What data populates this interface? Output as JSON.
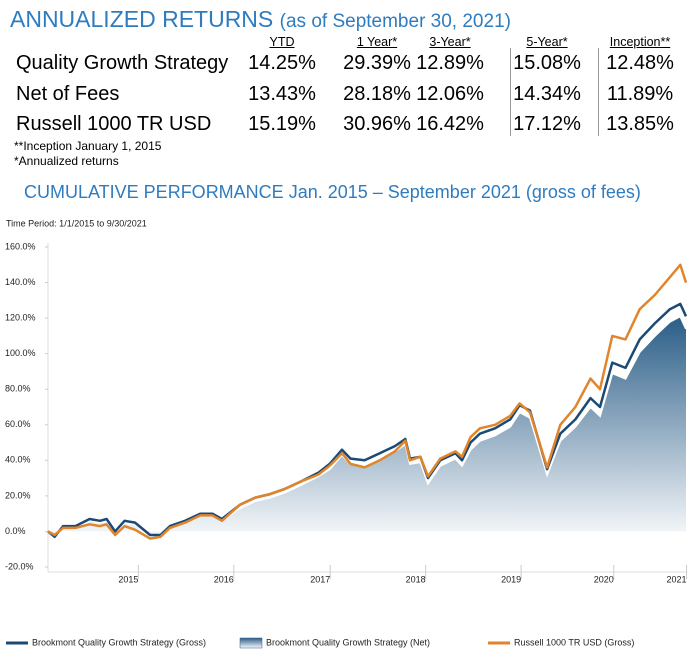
{
  "table": {
    "title": "ANNUALIZED RETURNS",
    "subtitle": "(as of September 30, 2021)",
    "columns": [
      "YTD",
      "1 Year*",
      "3-Year*",
      "5-Year*",
      "Inception**"
    ],
    "rows": [
      [
        "Quality Growth Strategy",
        "14.25%",
        "29.39%",
        "12.89%",
        "15.08%",
        "12.48%"
      ],
      [
        "Net of Fees",
        "13.43%",
        "28.18%",
        "12.06%",
        "14.34%",
        "11.89%"
      ],
      [
        "Russell 1000 TR USD",
        "15.19%",
        "30.96%",
        "16.42%",
        "17.12%",
        "13.85%"
      ]
    ],
    "notes": [
      "**Inception January 1, 2015",
      "*Annualized returns"
    ]
  },
  "chart_data": {
    "type": "line",
    "title": "CUMULATIVE PERFORMANCE Jan. 2015 – September 2021 (gross of fees)",
    "subtitle": "Time Period: 1/1/2015 to 9/30/2021",
    "x": [
      2015.0,
      2015.07,
      2015.16,
      2015.29,
      2015.44,
      2015.55,
      2015.62,
      2015.71,
      2015.81,
      2015.92,
      2016.08,
      2016.19,
      2016.29,
      2016.45,
      2016.61,
      2016.74,
      2016.84,
      2017.03,
      2017.19,
      2017.35,
      2017.51,
      2017.67,
      2017.86,
      2017.98,
      2018.11,
      2018.2,
      2018.35,
      2018.51,
      2018.67,
      2018.78,
      2018.83,
      2018.94,
      2019.02,
      2019.15,
      2019.31,
      2019.38,
      2019.47,
      2019.57,
      2019.73,
      2019.89,
      2019.99,
      2020.1,
      2020.28,
      2020.42,
      2020.58,
      2020.74,
      2020.84,
      2020.97,
      2021.11,
      2021.26,
      2021.42,
      2021.58,
      2021.69,
      2021.75
    ],
    "series": [
      {
        "name": "Brookmont Quality Growth Strategy (Net)",
        "color": "#2a5d87",
        "style": "area",
        "values": [
          0,
          -3,
          3,
          3,
          6,
          5,
          6,
          -1,
          5,
          4,
          -3,
          -3,
          2,
          5,
          9,
          9,
          6,
          13,
          17,
          19,
          22,
          26,
          31,
          35,
          43,
          38,
          37,
          41,
          45,
          49,
          38,
          39,
          27,
          37,
          41,
          37,
          46,
          51,
          54,
          59,
          67,
          64,
          32,
          51,
          59,
          70,
          65,
          89,
          86,
          101,
          110,
          118,
          121,
          114
        ]
      },
      {
        "name": "Brookmont Quality Growth Strategy (Gross)",
        "color": "#1b4a74",
        "style": "line",
        "values": [
          0,
          -3,
          3,
          3,
          7,
          6,
          7,
          0,
          6,
          5,
          -2,
          -2,
          3,
          6,
          10,
          10,
          7,
          15,
          19,
          21,
          24,
          28,
          33,
          38,
          46,
          41,
          40,
          44,
          48,
          52,
          41,
          42,
          30,
          40,
          44,
          40,
          50,
          55,
          58,
          63,
          71,
          68,
          35,
          55,
          63,
          75,
          70,
          95,
          92,
          108,
          117,
          125,
          128,
          121
        ]
      },
      {
        "name": "Russell 1000 TR USD (Gross)",
        "color": "#e0852c",
        "style": "line",
        "values": [
          0,
          -2,
          2,
          2,
          4,
          3,
          4,
          -2,
          3,
          1,
          -4,
          -3,
          2,
          5,
          9,
          9,
          6,
          15,
          19,
          21,
          24,
          28,
          32,
          37,
          44,
          38,
          36,
          40,
          45,
          51,
          40,
          42,
          31,
          41,
          45,
          42,
          53,
          58,
          60,
          65,
          72,
          67,
          36,
          60,
          70,
          86,
          80,
          110,
          108,
          125,
          133,
          143,
          150,
          140
        ]
      }
    ],
    "legend_order": [
      1,
      0,
      2
    ],
    "xlim": [
      2015,
      2021.75
    ],
    "xticks": [
      {
        "value": 2015.85,
        "label": "2015"
      },
      {
        "value": 2016.86,
        "label": "2016"
      },
      {
        "value": 2017.88,
        "label": "2017"
      },
      {
        "value": 2018.89,
        "label": "2018"
      },
      {
        "value": 2019.9,
        "label": "2019"
      },
      {
        "value": 2020.88,
        "label": "2020"
      },
      {
        "value": 2021.65,
        "label": "2021"
      }
    ],
    "ylim": [
      -20,
      160
    ],
    "yticks": [
      {
        "value": -20,
        "label": "-20.0%"
      },
      {
        "value": 0,
        "label": "0.0%"
      },
      {
        "value": 20,
        "label": "20.0%"
      },
      {
        "value": 40,
        "label": "40.0%"
      },
      {
        "value": 60,
        "label": "60.0%"
      },
      {
        "value": 80,
        "label": "80.0%"
      },
      {
        "value": 100,
        "label": "100.0%"
      },
      {
        "value": 120,
        "label": "120.0%"
      },
      {
        "value": 140,
        "label": "140.0%"
      },
      {
        "value": 160,
        "label": "160.0%"
      }
    ],
    "grid": false
  }
}
